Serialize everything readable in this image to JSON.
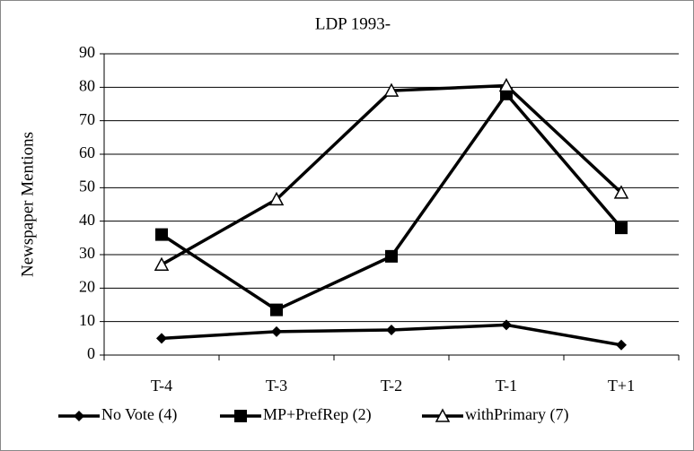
{
  "chart_data": {
    "type": "line",
    "title": "LDP 1993-",
    "y_label": "Newspaper Mentions",
    "categories": [
      "T-4",
      "T-3",
      "T-2",
      "T-1",
      "T+1"
    ],
    "series": [
      {
        "name": "No Vote (4)",
        "color": "#000000",
        "marker": "diamond",
        "values": [
          5,
          7,
          7.5,
          9,
          3
        ]
      },
      {
        "name": "MP+PrefRep (2)",
        "color": "#000000",
        "marker": "square",
        "values": [
          36,
          13.5,
          29.5,
          78,
          38
        ]
      },
      {
        "name": "withPrimary (7)",
        "color": "#000000",
        "marker": "triangle",
        "values": [
          27,
          46.5,
          79,
          80.5,
          48.5
        ]
      }
    ],
    "ylim": [
      0,
      90
    ],
    "yticks": [
      0,
      10,
      20,
      30,
      40,
      50,
      60,
      70,
      80,
      90
    ],
    "grid": true
  }
}
